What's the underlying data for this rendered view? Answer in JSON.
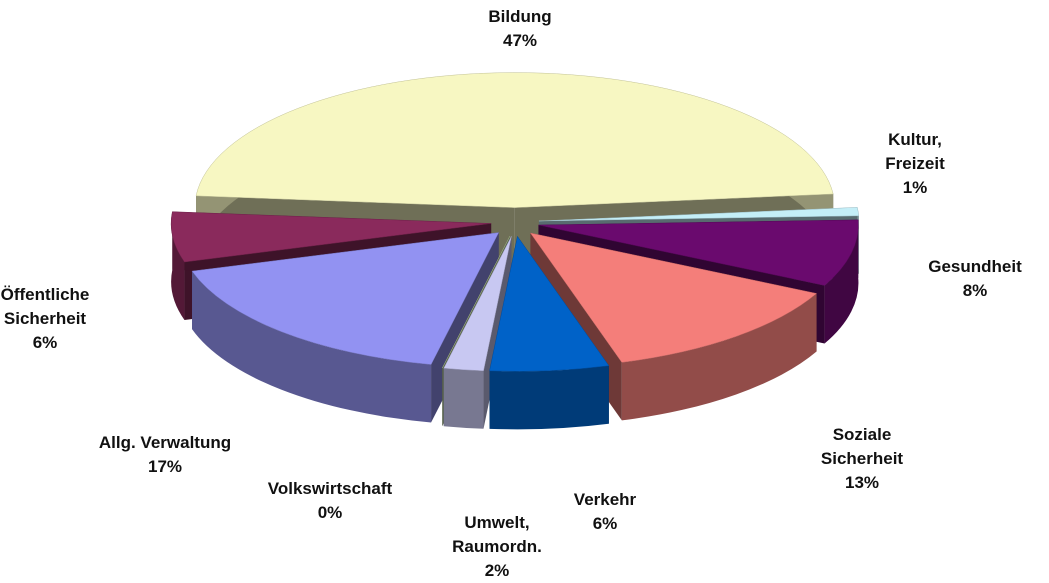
{
  "chart_data": {
    "type": "pie3d",
    "categories": [
      "Bildung",
      "Kultur, Freizeit",
      "Gesundheit",
      "Soziale Sicherheit",
      "Verkehr",
      "Umwelt, Raumordn.",
      "Volkswirtschaft",
      "Allg. Verwaltung",
      "Öffentliche Sicherheit"
    ],
    "values": [
      47,
      1,
      8,
      13,
      6,
      2,
      0,
      17,
      6
    ],
    "value_labels": [
      "47%",
      "1%",
      "8%",
      "13%",
      "6%",
      "2%",
      "0%",
      "17%",
      "6%"
    ],
    "colors": [
      "#f7f7c2",
      "#c4eef7",
      "#6a0a6e",
      "#f47e7a",
      "#0062c8",
      "#c8c8f2",
      "#c4dca4",
      "#9292f2",
      "#8a2a5c"
    ]
  }
}
